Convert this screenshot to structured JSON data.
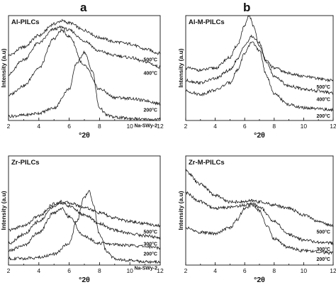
{
  "column_labels": [
    "a",
    "b"
  ],
  "chart_data": [
    {
      "type": "line",
      "panel": "Al-PILCs",
      "title": "Al-PILCs",
      "xlabel": "°2θ",
      "ylabel": "Intensity (a.u)",
      "xlim": [
        2,
        12
      ],
      "xticks": [
        "2",
        "4",
        "6",
        "8",
        "10",
        "12"
      ],
      "series": [
        {
          "name": "500°C",
          "x": [
            2,
            3,
            4,
            5,
            5.5,
            6,
            7,
            8,
            9,
            10,
            11,
            12
          ],
          "values": [
            0.62,
            0.7,
            0.81,
            0.92,
            0.95,
            0.93,
            0.86,
            0.79,
            0.75,
            0.73,
            0.68,
            0.64
          ]
        },
        {
          "name": "400°C",
          "x": [
            2,
            3,
            4,
            5,
            5.5,
            6,
            7,
            8,
            9,
            10,
            11,
            12
          ],
          "values": [
            0.44,
            0.58,
            0.74,
            0.87,
            0.89,
            0.86,
            0.76,
            0.66,
            0.62,
            0.6,
            0.56,
            0.51
          ]
        },
        {
          "name": "200°C",
          "x": [
            2,
            3,
            4,
            5,
            5.5,
            6,
            7,
            8,
            9,
            10,
            11,
            12
          ],
          "values": [
            0.24,
            0.33,
            0.5,
            0.78,
            0.86,
            0.8,
            0.52,
            0.3,
            0.22,
            0.21,
            0.19,
            0.16
          ]
        },
        {
          "name": "Na-SWy-2",
          "x": [
            2,
            3,
            4,
            5,
            6,
            6.5,
            7,
            7.5,
            8,
            8.5,
            9,
            10,
            11,
            12
          ],
          "values": [
            0.04,
            0.05,
            0.07,
            0.12,
            0.3,
            0.55,
            0.65,
            0.48,
            0.12,
            0.05,
            0.03,
            0.02,
            0.01,
            0.01
          ]
        }
      ]
    },
    {
      "type": "line",
      "panel": "Al-M-PILCs",
      "title": "Al-M-PILCs",
      "xlabel": "°2θ",
      "ylabel": "Intensity (a.u)",
      "xlim": [
        2,
        12
      ],
      "xticks": [
        "2",
        "4",
        "6",
        "8",
        "10",
        "12"
      ],
      "series": [
        {
          "name": "500°C",
          "x": [
            2,
            3,
            4,
            5,
            5.5,
            6,
            6.3,
            6.6,
            7,
            7.5,
            8,
            9,
            10,
            11,
            12
          ],
          "values": [
            0.5,
            0.48,
            0.5,
            0.6,
            0.72,
            0.9,
            1.0,
            0.9,
            0.7,
            0.56,
            0.5,
            0.45,
            0.42,
            0.4,
            0.38
          ]
        },
        {
          "name": "400°C",
          "x": [
            2,
            3,
            4,
            5,
            5.5,
            6,
            6.5,
            7,
            7.5,
            8,
            9,
            10,
            11,
            12
          ],
          "values": [
            0.38,
            0.36,
            0.4,
            0.48,
            0.58,
            0.72,
            0.8,
            0.74,
            0.55,
            0.42,
            0.33,
            0.3,
            0.28,
            0.26
          ]
        },
        {
          "name": "200°C",
          "x": [
            2,
            3,
            4,
            5,
            5.5,
            6,
            6.5,
            7,
            7.5,
            8,
            9,
            10,
            11,
            12
          ],
          "values": [
            0.28,
            0.25,
            0.29,
            0.36,
            0.48,
            0.64,
            0.75,
            0.66,
            0.42,
            0.25,
            0.15,
            0.12,
            0.11,
            0.1
          ]
        }
      ]
    },
    {
      "type": "line",
      "panel": "Zr-PILCs",
      "title": "Zr-PILCs",
      "xlabel": "°2θ",
      "ylabel": "Intensity (a.u)",
      "xlim": [
        2,
        12
      ],
      "xticks": [
        "2",
        "4",
        "6",
        "8",
        "10",
        "12"
      ],
      "series": [
        {
          "name": "500°C",
          "x": [
            2,
            3,
            4,
            5,
            5.5,
            6,
            7,
            8,
            9,
            10,
            11,
            12
          ],
          "values": [
            0.32,
            0.36,
            0.45,
            0.56,
            0.58,
            0.57,
            0.53,
            0.48,
            0.43,
            0.4,
            0.38,
            0.36
          ]
        },
        {
          "name": "300°C",
          "x": [
            2,
            3,
            4,
            5,
            5.5,
            6,
            7,
            8,
            9,
            10,
            11,
            12
          ],
          "values": [
            0.2,
            0.28,
            0.4,
            0.54,
            0.57,
            0.54,
            0.46,
            0.38,
            0.32,
            0.29,
            0.27,
            0.25
          ]
        },
        {
          "name": "200°C",
          "x": [
            2,
            3,
            4,
            5,
            5.5,
            6,
            7,
            8,
            9,
            10,
            11,
            12
          ],
          "values": [
            0.13,
            0.18,
            0.3,
            0.48,
            0.52,
            0.44,
            0.26,
            0.2,
            0.19,
            0.18,
            0.17,
            0.16
          ]
        },
        {
          "name": "Na-SWy-2",
          "x": [
            2,
            3,
            4,
            5,
            6,
            6.5,
            7,
            7.3,
            7.6,
            8,
            8.5,
            9,
            10,
            11,
            12
          ],
          "values": [
            0.06,
            0.06,
            0.07,
            0.1,
            0.2,
            0.4,
            0.62,
            0.68,
            0.55,
            0.28,
            0.12,
            0.06,
            0.04,
            0.03,
            0.03
          ]
        }
      ]
    },
    {
      "type": "line",
      "panel": "Zr-M-PILCs",
      "title": "Zr-M-PILCs",
      "xlabel": "°2θ",
      "ylabel": "Intensity (a.u)",
      "xlim": [
        2,
        12
      ],
      "xticks": [
        "2",
        "4",
        "6",
        "8",
        "10",
        "12"
      ],
      "series": [
        {
          "name": "500°C",
          "x": [
            2,
            3,
            4,
            5,
            6,
            6.5,
            7,
            8,
            9,
            10,
            11,
            12
          ],
          "values": [
            0.86,
            0.74,
            0.64,
            0.58,
            0.58,
            0.59,
            0.58,
            0.55,
            0.52,
            0.46,
            0.4,
            0.36
          ]
        },
        {
          "name": "300°C",
          "x": [
            2,
            3,
            4,
            5,
            6,
            6.5,
            7,
            8,
            9,
            10,
            11,
            12
          ],
          "values": [
            0.66,
            0.58,
            0.52,
            0.53,
            0.55,
            0.57,
            0.53,
            0.4,
            0.28,
            0.23,
            0.21,
            0.2
          ]
        },
        {
          "name": "200°C",
          "x": [
            2,
            3,
            4,
            5,
            5.5,
            6,
            6.5,
            7,
            7.5,
            8,
            9,
            10,
            11,
            12
          ],
          "values": [
            0.34,
            0.3,
            0.29,
            0.34,
            0.42,
            0.52,
            0.55,
            0.5,
            0.36,
            0.24,
            0.16,
            0.13,
            0.12,
            0.11
          ]
        }
      ]
    }
  ]
}
